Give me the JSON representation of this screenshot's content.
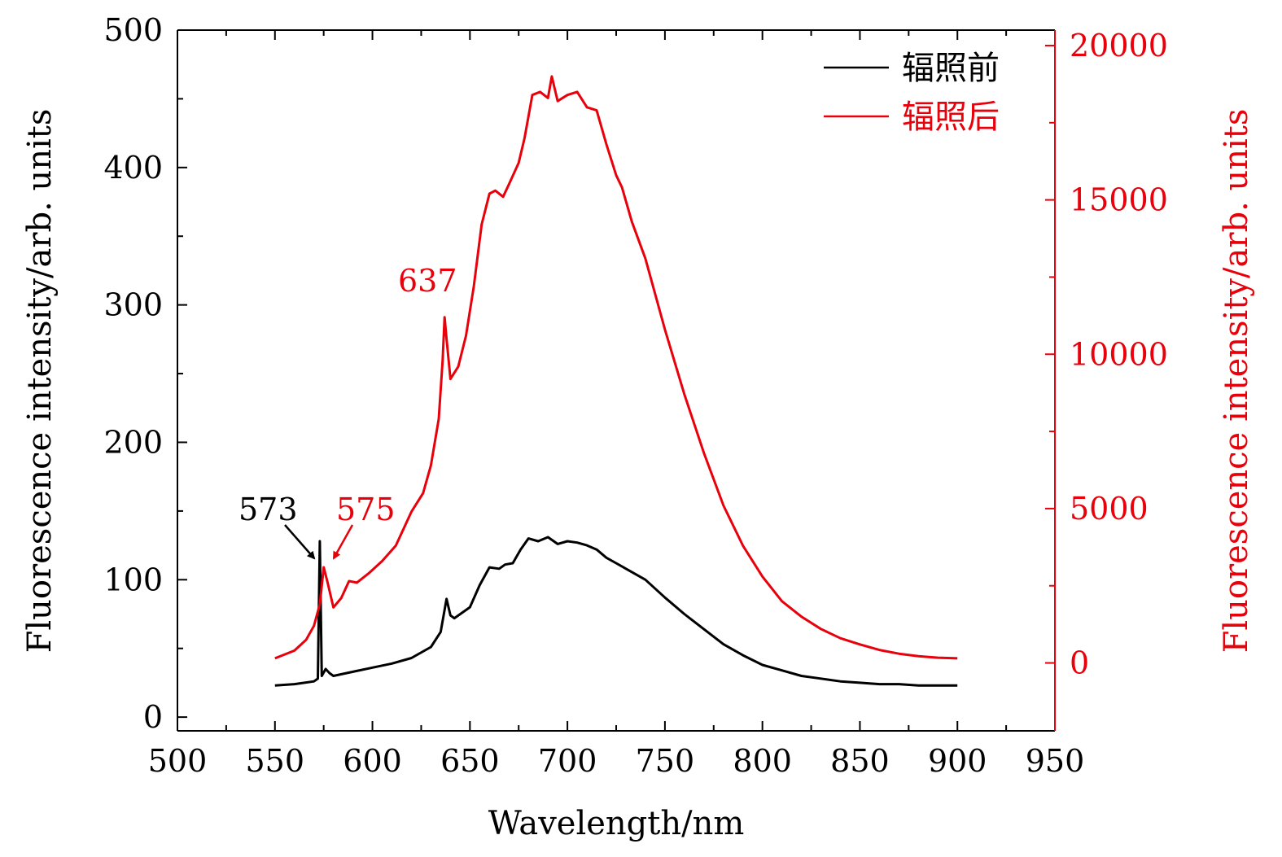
{
  "chart_data": {
    "type": "line",
    "x_axis": {
      "label": "Wavelength/nm",
      "range": [
        500,
        950
      ],
      "ticks": [
        500,
        550,
        600,
        650,
        700,
        750,
        800,
        850,
        900,
        950
      ]
    },
    "y_left": {
      "label": "Fluorescence intensity/arb. units",
      "range": [
        -10,
        500
      ],
      "ticks": [
        0,
        100,
        200,
        300,
        400,
        500
      ]
    },
    "y_right": {
      "label": "Fluorescence intensity/arb. units",
      "range": [
        -2200,
        20500
      ],
      "ticks": [
        0,
        5000,
        10000,
        15000,
        20000
      ],
      "color": "#e8000b"
    },
    "series": [
      {
        "name": "辐照前",
        "axis": "left",
        "color": "#000000",
        "points": [
          [
            550,
            23
          ],
          [
            560,
            24
          ],
          [
            570,
            26
          ],
          [
            572,
            28
          ],
          [
            573,
            128
          ],
          [
            574,
            30
          ],
          [
            576,
            35
          ],
          [
            578,
            32
          ],
          [
            580,
            30
          ],
          [
            590,
            33
          ],
          [
            600,
            36
          ],
          [
            610,
            39
          ],
          [
            620,
            43
          ],
          [
            630,
            51
          ],
          [
            635,
            62
          ],
          [
            637,
            78
          ],
          [
            638,
            86
          ],
          [
            640,
            74
          ],
          [
            642,
            72
          ],
          [
            650,
            80
          ],
          [
            655,
            96
          ],
          [
            660,
            109
          ],
          [
            665,
            108
          ],
          [
            668,
            111
          ],
          [
            672,
            112
          ],
          [
            676,
            122
          ],
          [
            680,
            130
          ],
          [
            685,
            128
          ],
          [
            690,
            131
          ],
          [
            695,
            126
          ],
          [
            700,
            128
          ],
          [
            705,
            127
          ],
          [
            710,
            125
          ],
          [
            715,
            122
          ],
          [
            720,
            116
          ],
          [
            725,
            112
          ],
          [
            730,
            108
          ],
          [
            740,
            100
          ],
          [
            750,
            87
          ],
          [
            760,
            75
          ],
          [
            770,
            64
          ],
          [
            780,
            53
          ],
          [
            790,
            45
          ],
          [
            800,
            38
          ],
          [
            810,
            34
          ],
          [
            820,
            30
          ],
          [
            830,
            28
          ],
          [
            840,
            26
          ],
          [
            850,
            25
          ],
          [
            860,
            24
          ],
          [
            870,
            24
          ],
          [
            880,
            23
          ],
          [
            890,
            23
          ],
          [
            900,
            23
          ]
        ]
      },
      {
        "name": "辐照后",
        "axis": "right",
        "color": "#e8000b",
        "points": [
          [
            550,
            150
          ],
          [
            560,
            400
          ],
          [
            566,
            750
          ],
          [
            570,
            1200
          ],
          [
            573,
            1900
          ],
          [
            575,
            3100
          ],
          [
            577,
            2600
          ],
          [
            580,
            1800
          ],
          [
            584,
            2100
          ],
          [
            588,
            2650
          ],
          [
            592,
            2600
          ],
          [
            598,
            2900
          ],
          [
            605,
            3300
          ],
          [
            612,
            3800
          ],
          [
            620,
            4900
          ],
          [
            626,
            5500
          ],
          [
            630,
            6400
          ],
          [
            634,
            7900
          ],
          [
            636,
            9800
          ],
          [
            637,
            11200
          ],
          [
            638,
            10500
          ],
          [
            640,
            9200
          ],
          [
            644,
            9600
          ],
          [
            648,
            10600
          ],
          [
            652,
            12200
          ],
          [
            656,
            14200
          ],
          [
            660,
            15200
          ],
          [
            663,
            15300
          ],
          [
            667,
            15100
          ],
          [
            670,
            15500
          ],
          [
            675,
            16200
          ],
          [
            678,
            17000
          ],
          [
            682,
            18400
          ],
          [
            686,
            18500
          ],
          [
            690,
            18300
          ],
          [
            692,
            19000
          ],
          [
            695,
            18200
          ],
          [
            700,
            18400
          ],
          [
            705,
            18500
          ],
          [
            710,
            18000
          ],
          [
            715,
            17900
          ],
          [
            720,
            16800
          ],
          [
            725,
            15800
          ],
          [
            728,
            15400
          ],
          [
            733,
            14300
          ],
          [
            740,
            13100
          ],
          [
            750,
            10800
          ],
          [
            760,
            8700
          ],
          [
            770,
            6800
          ],
          [
            780,
            5100
          ],
          [
            790,
            3800
          ],
          [
            800,
            2800
          ],
          [
            810,
            2000
          ],
          [
            820,
            1500
          ],
          [
            830,
            1100
          ],
          [
            840,
            800
          ],
          [
            850,
            600
          ],
          [
            860,
            420
          ],
          [
            870,
            300
          ],
          [
            880,
            220
          ],
          [
            890,
            170
          ],
          [
            900,
            150
          ]
        ]
      }
    ],
    "annotations": [
      {
        "text": "573",
        "color": "#000000"
      },
      {
        "text": "575",
        "color": "#e8000b"
      },
      {
        "text": "637",
        "color": "#e8000b"
      }
    ],
    "legend": {
      "position": "top-right"
    }
  }
}
